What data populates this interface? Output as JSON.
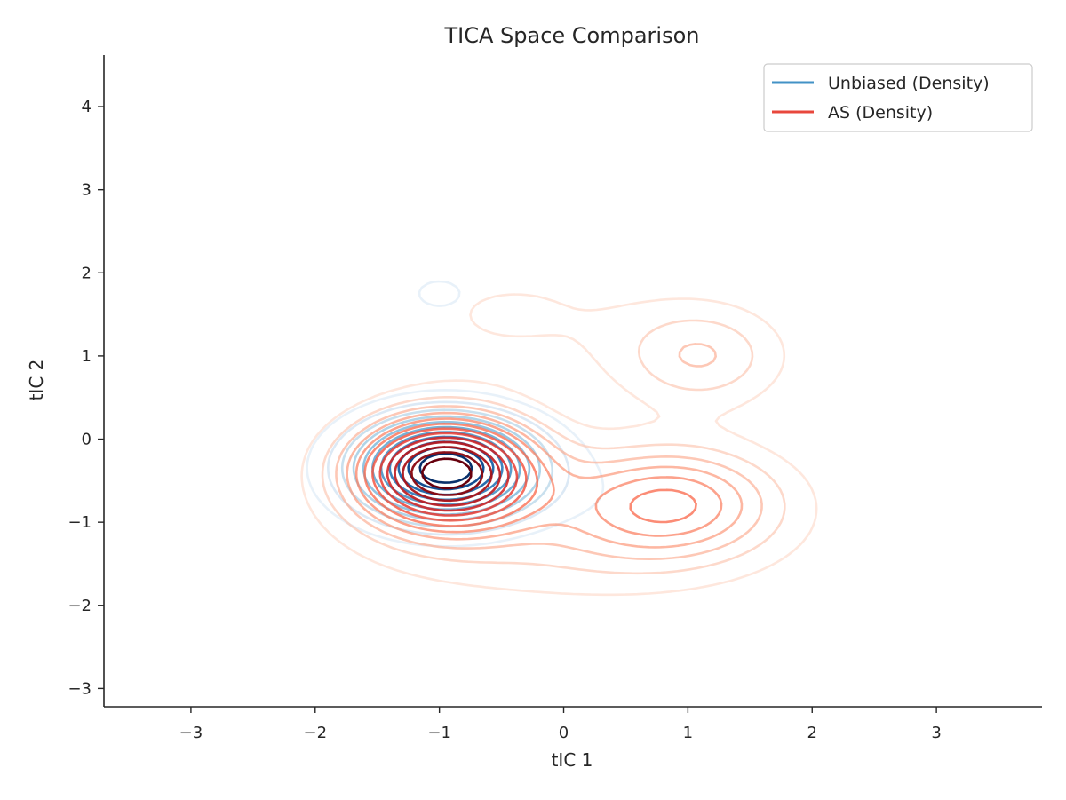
{
  "chart_data": {
    "type": "contour",
    "title": "TICA Space Comparison",
    "xlabel": "tIC 1",
    "ylabel": "tIC 2",
    "xlim": [
      -3.7,
      3.85
    ],
    "ylim": [
      -3.22,
      4.62
    ],
    "xticks": [
      -3,
      -2,
      -1,
      0,
      1,
      2,
      3
    ],
    "yticks": [
      -3,
      -2,
      -1,
      0,
      1,
      2,
      3,
      4
    ],
    "tick_labels_x": [
      "−3",
      "−2",
      "−1",
      "0",
      "1",
      "2",
      "3"
    ],
    "tick_labels_y": [
      "−3",
      "−2",
      "−1",
      "0",
      "1",
      "2",
      "3",
      "4"
    ],
    "grid": false,
    "legend_position": "top-right",
    "series": [
      {
        "name": "Unbiased (Density)",
        "color": "#4292c6",
        "colormap": "Blues",
        "levels": 11,
        "components": [
          {
            "mean": [
              -0.95,
              -0.35
            ],
            "sd": [
              0.5,
              0.42
            ],
            "weight": 1.0
          },
          {
            "mean": [
              -1.0,
              1.75
            ],
            "sd": [
              0.42,
              0.38
            ],
            "weight": 0.09
          },
          {
            "mean": [
              1.05,
              0.95
            ],
            "sd": [
              0.42,
              0.4
            ],
            "weight": 0.08
          },
          {
            "mean": [
              0.6,
              -0.8
            ],
            "sd": [
              0.6,
              0.5
            ],
            "weight": 0.06
          }
        ]
      },
      {
        "name": "AS (Density)",
        "color": "#e8473c",
        "colormap": "Reds",
        "levels": 13,
        "components": [
          {
            "mean": [
              -0.95,
              -0.4
            ],
            "sd": [
              0.5,
              0.45
            ],
            "weight": 1.0
          },
          {
            "mean": [
              0.85,
              -0.75
            ],
            "sd": [
              0.6,
              0.45
            ],
            "weight": 0.42
          },
          {
            "mean": [
              1.1,
              1.0
            ],
            "sd": [
              0.45,
              0.42
            ],
            "weight": 0.22
          },
          {
            "mean": [
              -0.4,
              1.5
            ],
            "sd": [
              0.8,
              0.55
            ],
            "weight": 0.08
          },
          {
            "mean": [
              0.0,
              -1.3
            ],
            "sd": [
              1.1,
              0.5
            ],
            "weight": 0.12
          }
        ]
      }
    ]
  }
}
